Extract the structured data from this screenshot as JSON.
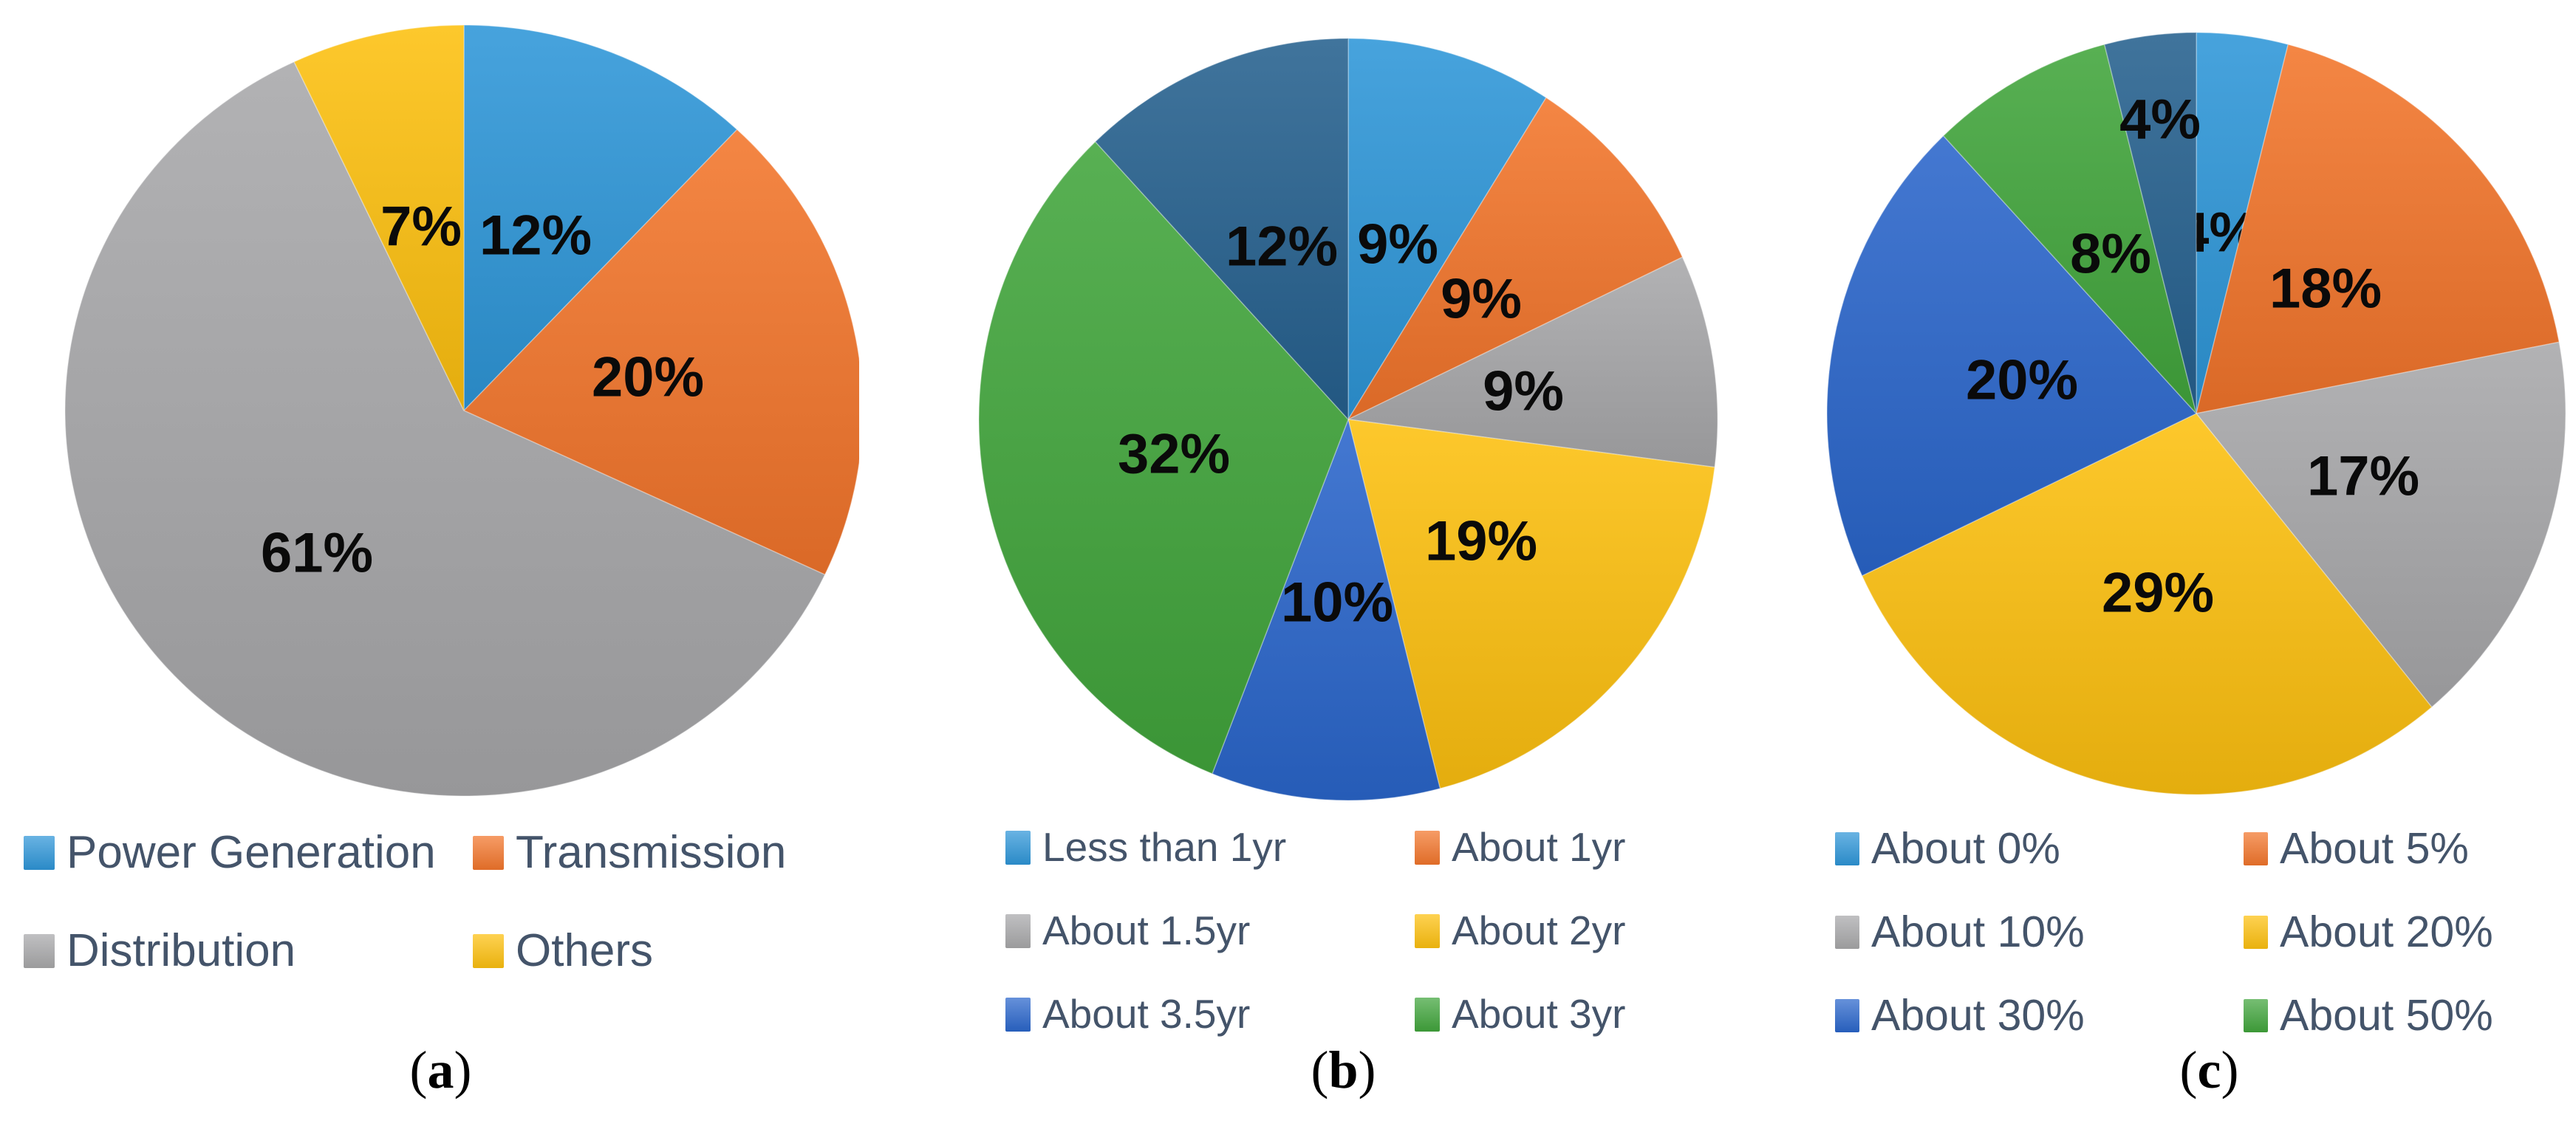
{
  "style": {
    "background": "#FFFFFF",
    "legend_text_color": "#44546A",
    "data_label_color": "#0A0A0A",
    "palette": {
      "light_blue": "#2E96D8",
      "orange": "#F2752B",
      "gray": "#A8A8AA",
      "yellow": "#FDC00F",
      "royal_blue": "#2A66CB",
      "green": "#41A53C",
      "dark_blue": "#26618F"
    }
  },
  "chart_data": [
    {
      "id": "a",
      "type": "pie",
      "caption": "(a)",
      "start_angle_deg": 0,
      "direction": "clockwise",
      "categories": [
        "Power Generation",
        "Transmission",
        "Distribution",
        "Others"
      ],
      "values": [
        12,
        20,
        61,
        7
      ],
      "data_labels": [
        "12%",
        "20%",
        "61%",
        "7%"
      ],
      "colors": [
        "#2E96D8",
        "#F2752B",
        "#A8A8AA",
        "#FDC00F"
      ],
      "label_radius": [
        0.49,
        0.47,
        0.52,
        0.49
      ],
      "legend": {
        "position": "bottom",
        "columns": 2,
        "entries": [
          {
            "label": "Power Generation",
            "color": "#2E96D8"
          },
          {
            "label": "Transmission",
            "color": "#F2752B"
          },
          {
            "label": "Distribution",
            "color": "#A8A8AA"
          },
          {
            "label": "Others",
            "color": "#FDC00F"
          }
        ]
      }
    },
    {
      "id": "b",
      "type": "pie",
      "caption": "(b)",
      "start_angle_deg": 0,
      "direction": "clockwise",
      "categories": [
        "Less than 1yr",
        "About 1yr",
        "About 1.5yr",
        "About 2yr",
        "About 3.5yr",
        "About 3yr",
        null
      ],
      "values": [
        9,
        9,
        9,
        19,
        10,
        32,
        12
      ],
      "data_labels": [
        "9%",
        "9%",
        "9%",
        "19%",
        "10%",
        "32%",
        "12%"
      ],
      "colors": [
        "#2E96D8",
        "#F2752B",
        "#A8A8AA",
        "#FDC00F",
        "#2A66CB",
        "#41A53C",
        "#26618F"
      ],
      "label_radius": [
        0.48,
        0.48,
        0.48,
        0.48,
        0.48,
        0.48,
        0.49
      ],
      "legend": {
        "position": "bottom",
        "columns": 2,
        "entries": [
          {
            "label": "Less than 1yr",
            "color": "#2E96D8"
          },
          {
            "label": "About 1yr",
            "color": "#F2752B"
          },
          {
            "label": "About 1.5yr",
            "color": "#A8A8AA"
          },
          {
            "label": "About 2yr",
            "color": "#FDC00F"
          },
          {
            "label": "About 3.5yr",
            "color": "#2A66CB"
          },
          {
            "label": "About 3yr",
            "color": "#41A53C"
          }
        ]
      }
    },
    {
      "id": "c",
      "type": "pie",
      "caption": "(c)",
      "start_angle_deg": 0,
      "direction": "clockwise",
      "categories": [
        "About 0%",
        "About 5%",
        "About 10%",
        "About 20%",
        "About 30%",
        "About 50%",
        null
      ],
      "values": [
        4,
        18,
        17,
        29,
        20,
        8,
        4
      ],
      "data_labels": [
        "4%",
        "18%",
        "17%",
        "29%",
        "20%",
        "8%",
        "4%"
      ],
      "colors": [
        "#2E96D8",
        "#F2752B",
        "#A8A8AA",
        "#FDC00F",
        "#2A66CB",
        "#41A53C",
        "#26618F"
      ],
      "label_radius": [
        0.48,
        0.48,
        0.48,
        0.48,
        0.48,
        0.48,
        0.78
      ],
      "legend": {
        "position": "bottom",
        "columns": 2,
        "entries": [
          {
            "label": "About 0%",
            "color": "#2E96D8"
          },
          {
            "label": "About 5%",
            "color": "#F2752B"
          },
          {
            "label": "About 10%",
            "color": "#A8A8AA"
          },
          {
            "label": "About 20%",
            "color": "#FDC00F"
          },
          {
            "label": "About 30%",
            "color": "#2A66CB"
          },
          {
            "label": "About 50%",
            "color": "#41A53C"
          }
        ]
      }
    }
  ]
}
